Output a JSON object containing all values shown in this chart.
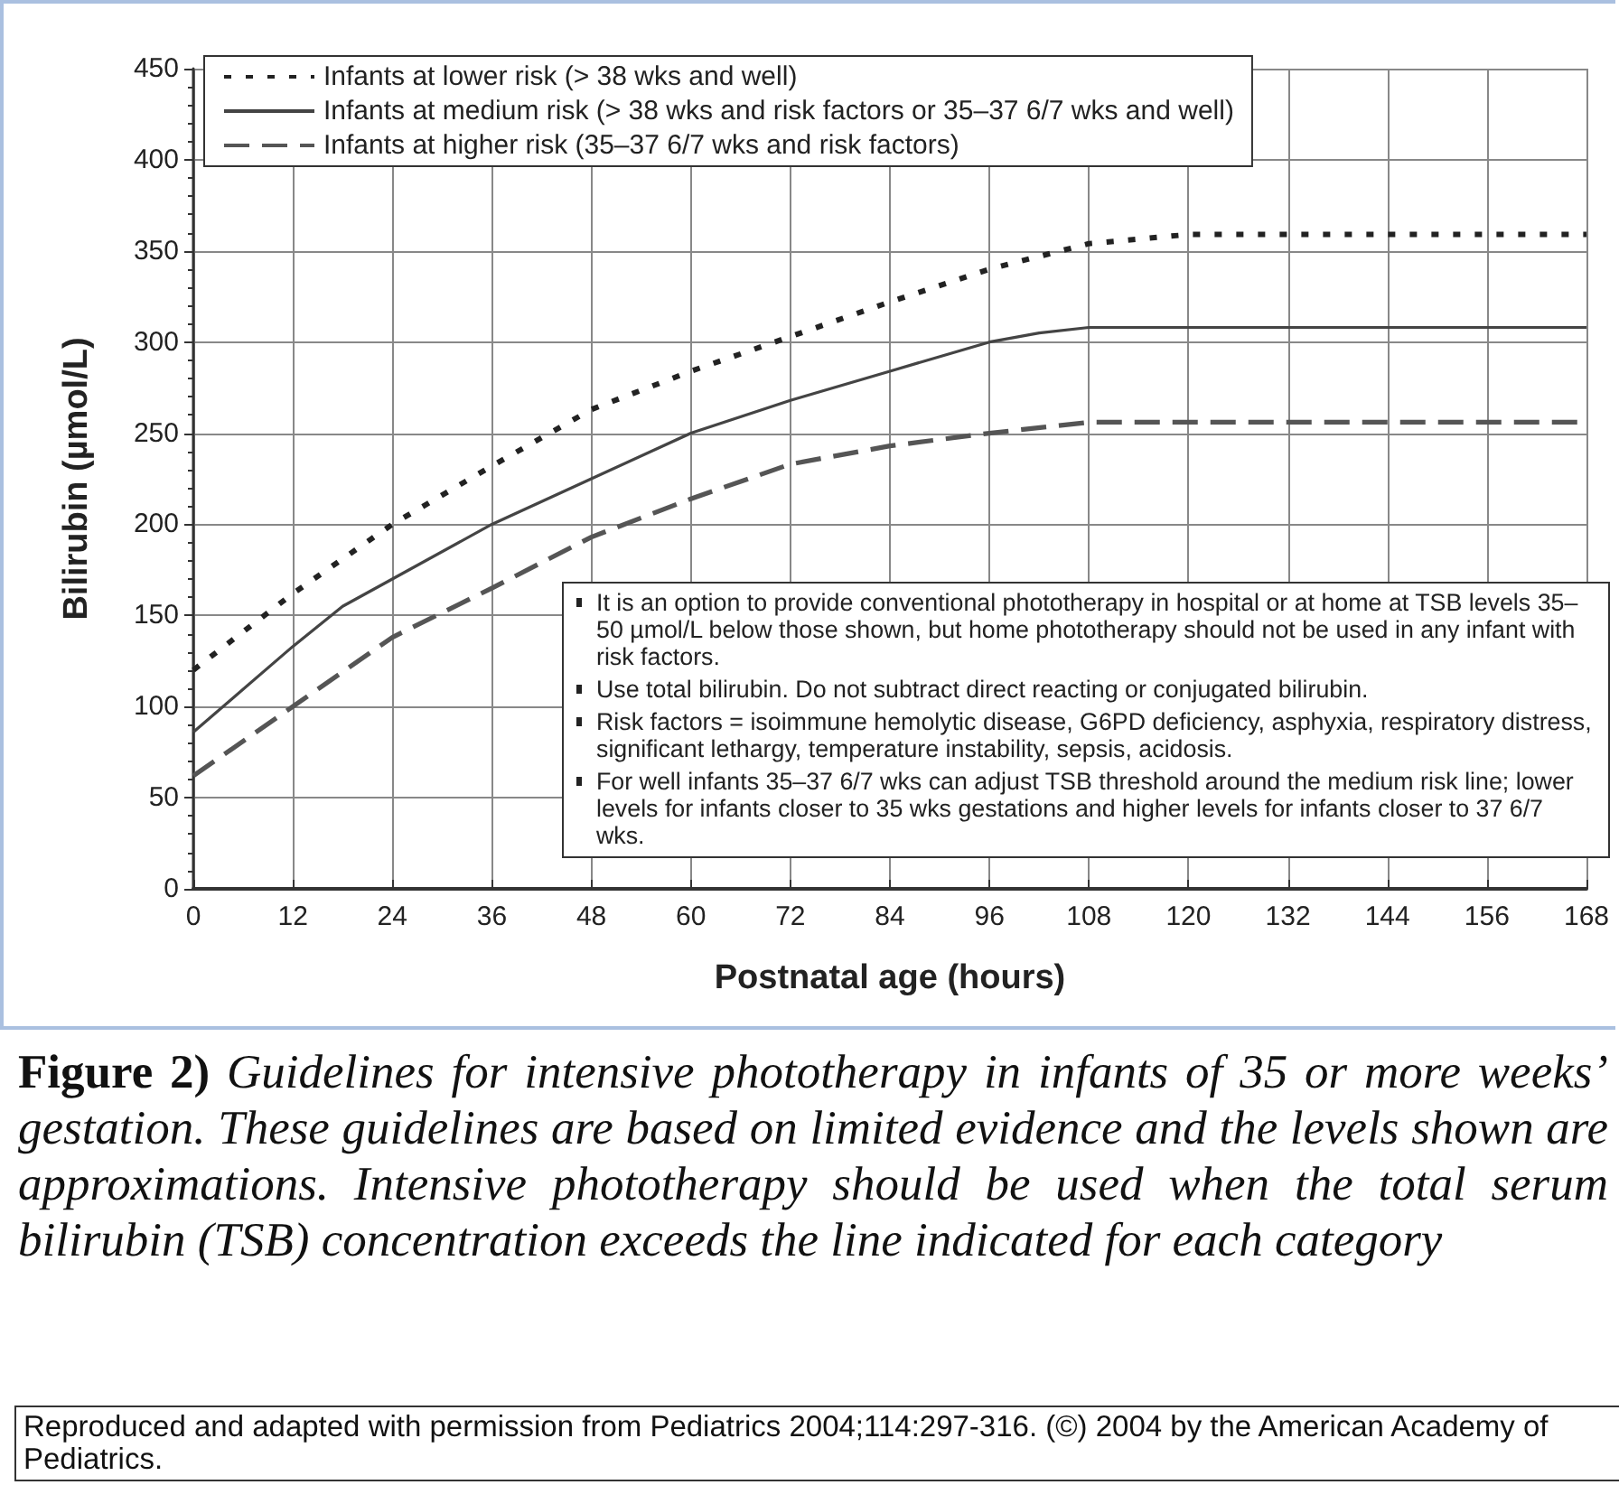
{
  "chart_data": {
    "type": "line",
    "xlabel": "Postnatal age (hours)",
    "ylabel": "Bilirubin (µmol/L)",
    "xlim": [
      0,
      168
    ],
    "xticks": [
      0,
      12,
      24,
      36,
      48,
      60,
      72,
      84,
      96,
      108,
      120,
      132,
      144,
      156,
      168
    ],
    "ylim": [
      0,
      450
    ],
    "yticks": [
      0,
      50,
      100,
      150,
      200,
      250,
      300,
      350,
      400,
      450
    ],
    "grid": true,
    "legend": "top left",
    "marker": "none",
    "series": [
      {
        "name": "Infants at lower risk (> 38 wks and well)",
        "color": "#222222",
        "line_style": "dotted",
        "x": [
          0,
          12,
          24,
          36,
          48,
          60,
          72,
          84,
          96,
          108,
          120,
          168
        ],
        "values": [
          120,
          162,
          200,
          232,
          263,
          284,
          303,
          322,
          340,
          354,
          359,
          359
        ]
      },
      {
        "name": "Infants at medium risk (> 38 wks and risk factors or 35–37 6/7 wks and well)",
        "color": "#444444",
        "line_style": "solid",
        "x": [
          0,
          12,
          18,
          24,
          36,
          48,
          60,
          72,
          84,
          96,
          102,
          108,
          168
        ],
        "values": [
          86,
          133,
          155,
          170,
          200,
          225,
          250,
          268,
          284,
          300,
          305,
          308,
          308
        ]
      },
      {
        "name": "Infants at higher risk (35–37 6/7 wks and risk factors)",
        "color": "#555555",
        "line_style": "dashed",
        "x": [
          0,
          12,
          24,
          36,
          48,
          60,
          72,
          84,
          96,
          108,
          168
        ],
        "values": [
          62,
          100,
          138,
          165,
          193,
          214,
          233,
          243,
          250,
          256,
          256
        ]
      }
    ],
    "annotations": [
      "It is an option to provide conventional phototherapy in hospital or at home at TSB levels 35–50 µmol/L below those shown, but home phototherapy should not be used in any infant with risk factors.",
      "Use total bilirubin. Do not subtract direct reacting or conjugated bilirubin.",
      "Risk factors = isoimmune hemolytic disease, G6PD deficiency, asphyxia, respiratory distress, significant lethargy, temperature instability, sepsis, acidosis.",
      "For well infants 35–37 6/7 wks can adjust TSB threshold around the medium risk line; lower levels for infants closer to 35 wks gestations and higher levels for infants closer to 37 6/7 wks.",
      "Figure 2)",
      "Guidelines for intensive phototherapy in infants of 35 or more weeks’ gestation. These guidelines are based on limited evidence and the levels shown are approximations. Intensive phototherapy should be used when the total serum bilirubin (TSB) concentration exceeds the line indicated for each category",
      "Reproduced and adapted with permission from Pediatrics 2004;114:297-316. (©) 2004 by the American Academy of Pediatrics."
    ]
  }
}
